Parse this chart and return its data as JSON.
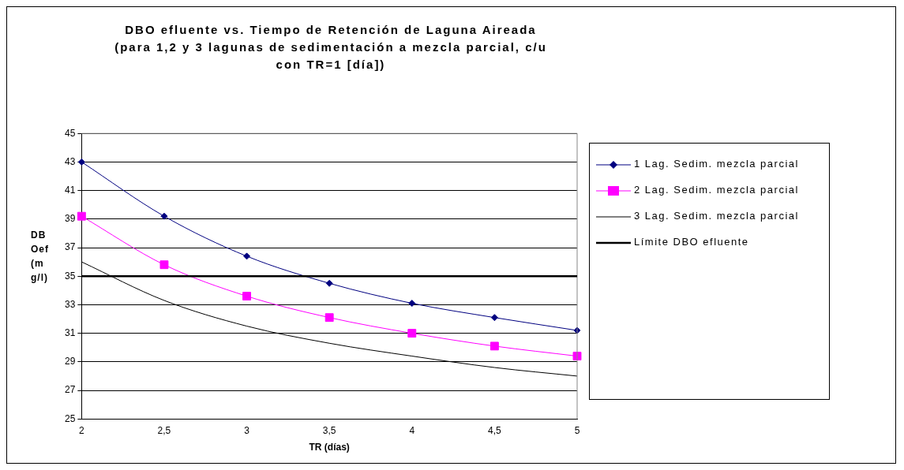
{
  "chart_data": {
    "type": "line",
    "title": "DBO efluente vs. Tiempo de Retención de Laguna Aireada\n(para 1,2 y 3 lagunas de sedimentación a mezcla parcial, c/u con TR=1 [día])",
    "xlabel": "TR (días)",
    "ylabel": "DBOef (mg/l)",
    "categories": [
      "2",
      "2,5",
      "3",
      "3,5",
      "4",
      "4,5",
      "5"
    ],
    "series": [
      {
        "name": "1 Lag. Sedim. mezcla parcial",
        "color": "#000080",
        "marker": "diamond",
        "values": [
          43,
          39.2,
          36.4,
          34.5,
          33.1,
          32.1,
          31.2
        ]
      },
      {
        "name": "2 Lag. Sedim. mezcla parcial",
        "color": "#ff00ff",
        "marker": "square",
        "values": [
          39.2,
          35.8,
          33.6,
          32.1,
          31.0,
          30.1,
          29.4
        ]
      },
      {
        "name": "3 Lag. Sedim. mezcla parcial",
        "color": "#000000",
        "marker": "none",
        "values": [
          36.0,
          33.3,
          31.5,
          30.3,
          29.4,
          28.6,
          28.0
        ]
      }
    ],
    "ref_lines": [
      {
        "axis": "y",
        "value": 35,
        "label": "Límite DBO efluente",
        "color": "#000000"
      }
    ],
    "ylim": [
      25,
      45
    ],
    "yticks": [
      25,
      27,
      29,
      31,
      33,
      35,
      37,
      39,
      41,
      43,
      45
    ],
    "grid": "y",
    "legend": "right"
  }
}
